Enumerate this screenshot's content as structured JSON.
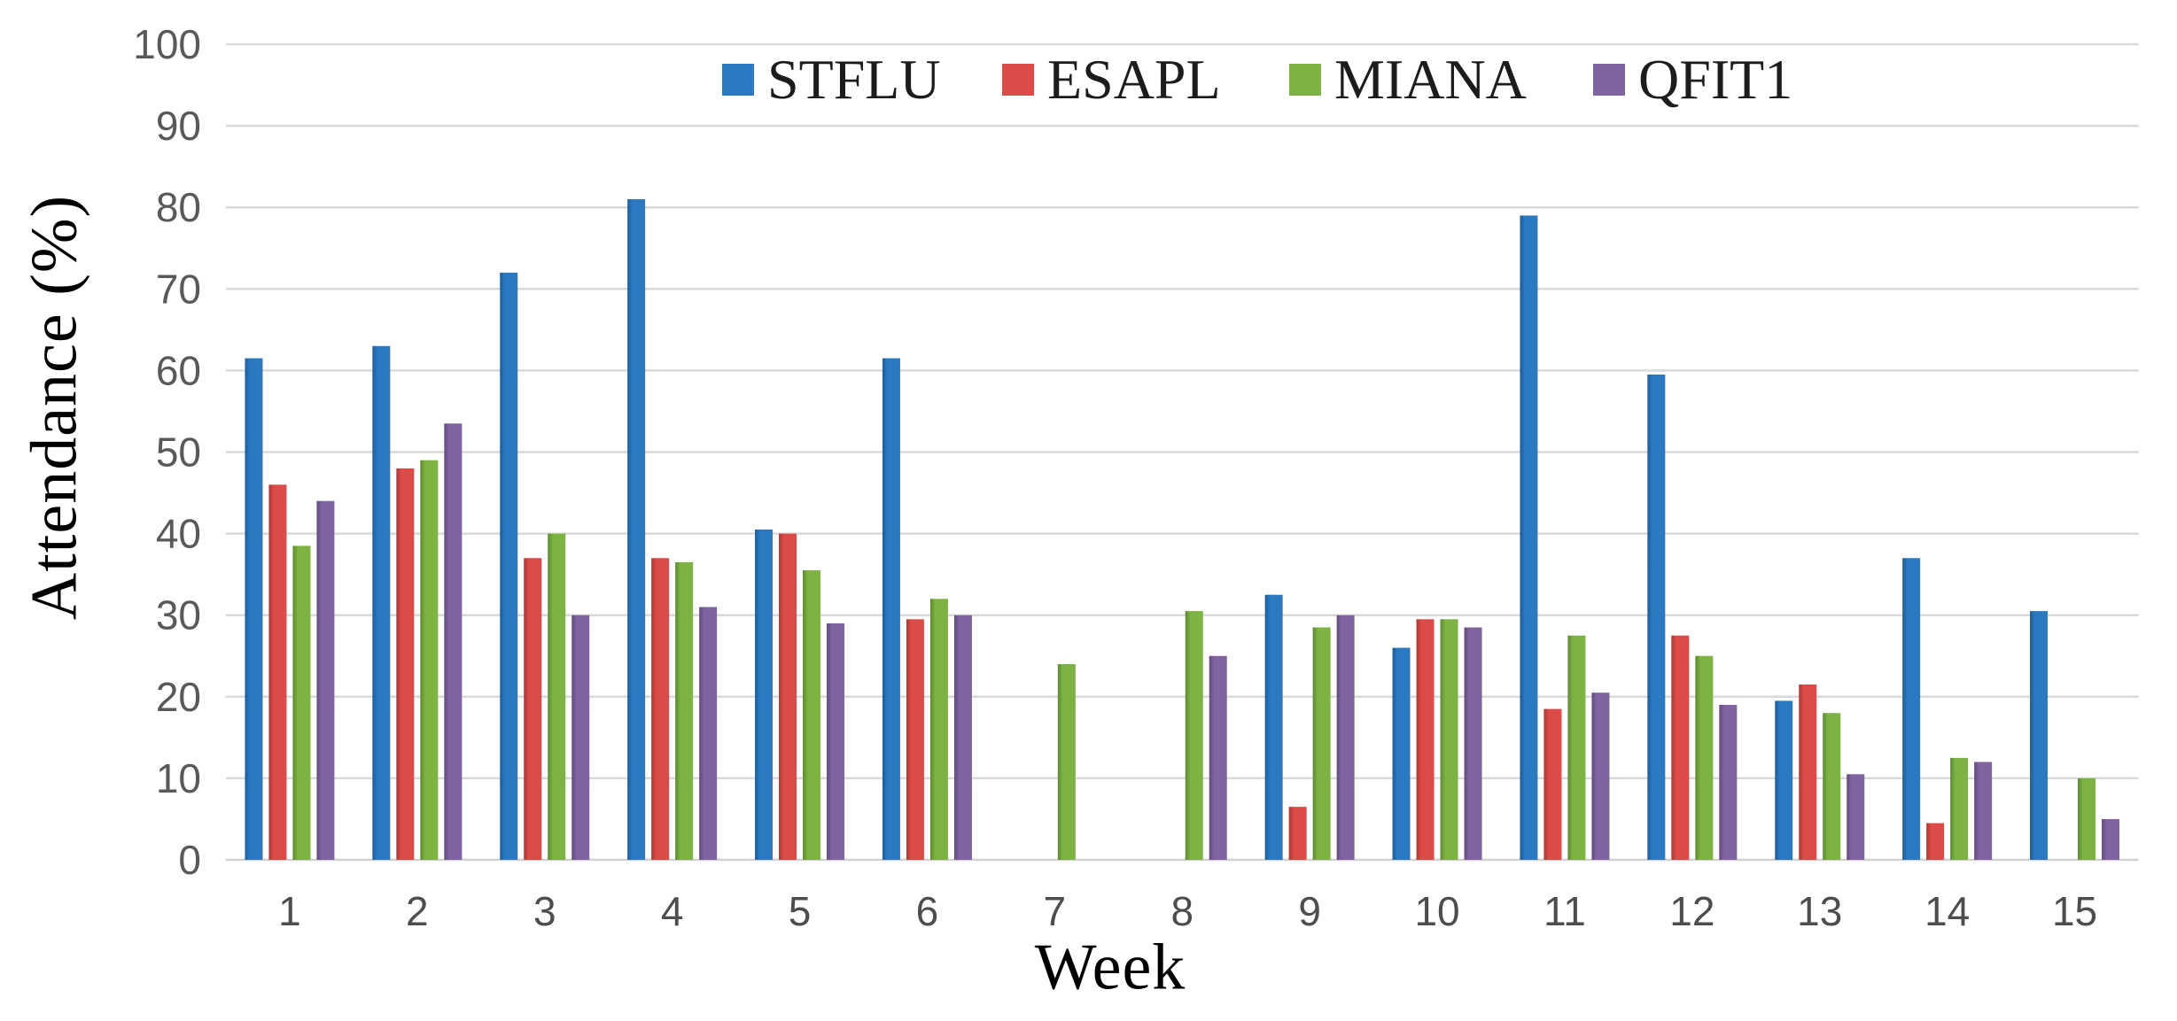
{
  "chart_data": {
    "type": "bar",
    "title": "",
    "xlabel": "Week",
    "ylabel": "Attendance  (%)",
    "ylim": [
      0,
      100
    ],
    "ytick_step": 10,
    "grid": true,
    "legend_position": "top-center",
    "gridline_color": "#d9d9d9",
    "axis_line_color": "#d2d2d2",
    "ytick_color": "#595959",
    "xtick_color": "#4d4d4d",
    "categories": [
      "1",
      "2",
      "3",
      "4",
      "5",
      "6",
      "7",
      "8",
      "9",
      "10",
      "11",
      "12",
      "13",
      "14",
      "15"
    ],
    "series": [
      {
        "name": "STFLU",
        "color": "#2b79c0",
        "values": [
          61.5,
          63,
          72,
          81,
          40.5,
          61.5,
          0,
          0,
          32.5,
          26,
          79,
          59.5,
          19.5,
          37,
          30.5
        ]
      },
      {
        "name": "ESAPL",
        "color": "#dd4b48",
        "values": [
          46,
          48,
          37,
          37,
          40,
          29.5,
          0,
          0,
          6.5,
          29.5,
          18.5,
          27.5,
          21.5,
          4.5,
          0
        ]
      },
      {
        "name": "MIANA",
        "color": "#7cb342",
        "values": [
          38.5,
          49,
          40,
          36.5,
          35.5,
          32,
          24,
          30.5,
          28.5,
          29.5,
          27.5,
          25,
          18,
          12.5,
          10
        ]
      },
      {
        "name": "QFIT1",
        "color": "#8064a2",
        "values": [
          44,
          53.5,
          30,
          31,
          29,
          30,
          0,
          25,
          30,
          28.5,
          20.5,
          19,
          10.5,
          12,
          5
        ]
      }
    ]
  }
}
